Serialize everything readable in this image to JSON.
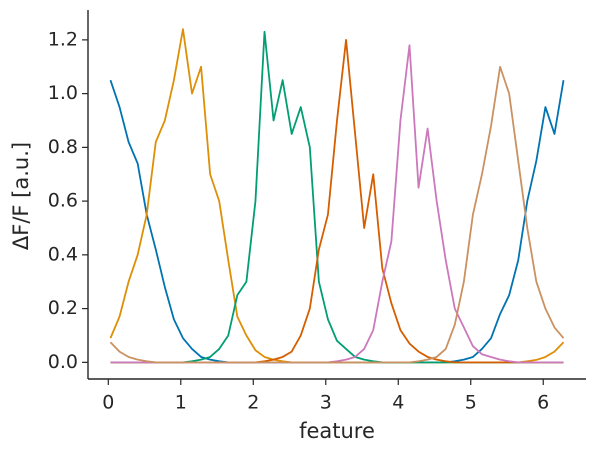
{
  "chart_data": {
    "type": "line",
    "x_label": "feature",
    "y_label": "ΔF/F [a.u.]",
    "x": [
      0.03,
      0.155,
      0.28,
      0.405,
      0.53,
      0.655,
      0.78,
      0.905,
      1.03,
      1.155,
      1.28,
      1.405,
      1.53,
      1.655,
      1.78,
      1.905,
      2.03,
      2.155,
      2.28,
      2.405,
      2.53,
      2.655,
      2.78,
      2.905,
      3.03,
      3.155,
      3.28,
      3.405,
      3.53,
      3.655,
      3.78,
      3.905,
      4.03,
      4.155,
      4.28,
      4.405,
      4.53,
      4.655,
      4.78,
      4.905,
      5.03,
      5.155,
      5.28,
      5.405,
      5.53,
      5.655,
      5.78,
      5.905,
      6.03,
      6.155,
      6.28
    ],
    "series": [
      {
        "color": "#0173b2",
        "values": [
          1.05,
          0.95,
          0.82,
          0.74,
          0.55,
          0.42,
          0.28,
          0.16,
          0.09,
          0.05,
          0.02,
          0.01,
          0.004,
          0,
          0,
          0,
          0,
          0,
          0,
          0,
          0,
          0,
          0,
          0,
          0,
          0,
          0,
          0,
          0,
          0,
          0,
          0,
          0,
          0,
          0,
          0,
          0,
          0,
          0.004,
          0.01,
          0.02,
          0.05,
          0.09,
          0.18,
          0.25,
          0.38,
          0.6,
          0.75,
          0.95,
          0.85,
          1.05
        ]
      },
      {
        "color": "#de8f05",
        "values": [
          0.09,
          0.17,
          0.3,
          0.4,
          0.55,
          0.82,
          0.9,
          1.05,
          1.24,
          1.0,
          1.1,
          0.7,
          0.6,
          0.38,
          0.17,
          0.1,
          0.045,
          0.02,
          0.01,
          0.004,
          0,
          0,
          0,
          0,
          0,
          0,
          0,
          0,
          0,
          0,
          0,
          0,
          0,
          0,
          0,
          0,
          0,
          0,
          0,
          0,
          0,
          0,
          0,
          0,
          0,
          0,
          0.004,
          0.009,
          0.02,
          0.04,
          0.075
        ]
      },
      {
        "color": "#029e73",
        "values": [
          0,
          0,
          0,
          0,
          0,
          0,
          0,
          0,
          0,
          0.004,
          0.01,
          0.02,
          0.05,
          0.1,
          0.25,
          0.3,
          0.6,
          1.23,
          0.9,
          1.05,
          0.85,
          0.95,
          0.8,
          0.3,
          0.16,
          0.08,
          0.05,
          0.02,
          0.01,
          0.004,
          0,
          0,
          0,
          0,
          0,
          0,
          0,
          0,
          0,
          0,
          0,
          0,
          0,
          0,
          0,
          0,
          0,
          0,
          0,
          0,
          0
        ]
      },
      {
        "color": "#d55e00",
        "values": [
          0,
          0,
          0,
          0,
          0,
          0,
          0,
          0,
          0,
          0,
          0,
          0,
          0,
          0,
          0,
          0,
          0,
          0.004,
          0.01,
          0.02,
          0.04,
          0.1,
          0.2,
          0.42,
          0.55,
          0.9,
          1.2,
          0.85,
          0.5,
          0.7,
          0.35,
          0.22,
          0.12,
          0.07,
          0.04,
          0.02,
          0.01,
          0.004,
          0,
          0,
          0,
          0,
          0,
          0,
          0,
          0,
          0,
          0,
          0,
          0,
          0
        ]
      },
      {
        "color": "#cc78bc",
        "values": [
          0,
          0,
          0,
          0,
          0,
          0,
          0,
          0,
          0,
          0,
          0,
          0,
          0,
          0,
          0,
          0,
          0,
          0,
          0,
          0,
          0,
          0,
          0,
          0,
          0,
          0.004,
          0.01,
          0.02,
          0.05,
          0.12,
          0.3,
          0.45,
          0.9,
          1.18,
          0.65,
          0.87,
          0.6,
          0.38,
          0.2,
          0.13,
          0.06,
          0.03,
          0.02,
          0.01,
          0.004,
          0,
          0,
          0,
          0,
          0,
          0
        ]
      },
      {
        "color": "#ca9161",
        "values": [
          0.075,
          0.04,
          0.02,
          0.01,
          0.004,
          0,
          0,
          0,
          0,
          0,
          0,
          0,
          0,
          0,
          0,
          0,
          0,
          0,
          0,
          0,
          0,
          0,
          0,
          0,
          0,
          0,
          0,
          0,
          0,
          0,
          0,
          0,
          0,
          0,
          0.004,
          0.01,
          0.02,
          0.05,
          0.14,
          0.3,
          0.55,
          0.7,
          0.88,
          1.1,
          1.0,
          0.75,
          0.5,
          0.3,
          0.2,
          0.13,
          0.09
        ]
      }
    ],
    "xlim": [
      -0.28,
      6.59
    ],
    "xticks": [
      0,
      1,
      2,
      3,
      4,
      5,
      6
    ],
    "ylim": [
      -0.062,
      1.3
    ],
    "yticks": [
      {
        "value": 0,
        "label": "0.0"
      },
      0.2,
      0.4,
      0.6,
      0.8,
      {
        "value": 1,
        "label": "1.0"
      },
      1.2
    ]
  }
}
